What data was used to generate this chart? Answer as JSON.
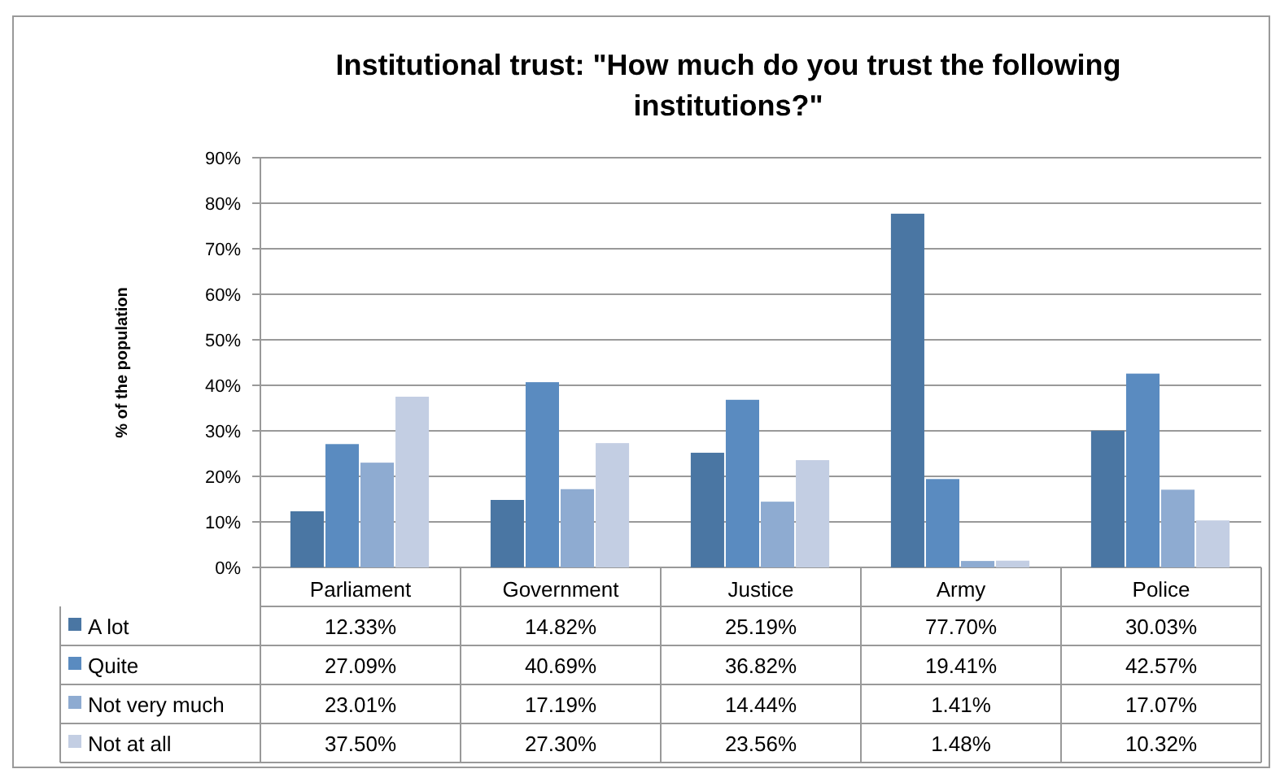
{
  "chart_data": {
    "type": "bar",
    "title": "Institutional trust: \"How much do you trust the following institutions?\"",
    "ylabel": "% of the population",
    "categories": [
      "Parliament",
      "Government",
      "Justice",
      "Army",
      "Police"
    ],
    "series": [
      {
        "name": "A lot",
        "color": "#4a76a3",
        "values": [
          12.33,
          14.82,
          25.19,
          77.7,
          30.03
        ],
        "value_labels": [
          "12.33%",
          "14.82%",
          "25.19%",
          "77.70%",
          "30.03%"
        ]
      },
      {
        "name": "Quite",
        "color": "#5a8bc0",
        "values": [
          27.09,
          40.69,
          36.82,
          19.41,
          42.57
        ],
        "value_labels": [
          "27.09%",
          "40.69%",
          "36.82%",
          "19.41%",
          "42.57%"
        ]
      },
      {
        "name": "Not very much",
        "color": "#8eabd1",
        "values": [
          23.01,
          17.19,
          14.44,
          1.41,
          17.07
        ],
        "value_labels": [
          "23.01%",
          "17.19%",
          "14.44%",
          "1.41%",
          "17.07%"
        ]
      },
      {
        "name": "Not at all",
        "color": "#c3cee3",
        "values": [
          37.5,
          27.3,
          23.56,
          1.48,
          10.32
        ],
        "value_labels": [
          "37.50%",
          "27.30%",
          "23.56%",
          "1.48%",
          "10.32%"
        ]
      }
    ],
    "ylim": [
      0,
      90
    ],
    "yticks": [
      {
        "value": 0,
        "label": "0%"
      },
      {
        "value": 10,
        "label": "10%"
      },
      {
        "value": 20,
        "label": "20%"
      },
      {
        "value": 30,
        "label": "30%"
      },
      {
        "value": 40,
        "label": "40%"
      },
      {
        "value": 50,
        "label": "50%"
      },
      {
        "value": 60,
        "label": "60%"
      },
      {
        "value": 70,
        "label": "70%"
      },
      {
        "value": 80,
        "label": "80%"
      },
      {
        "value": 90,
        "label": "90%"
      }
    ],
    "grid": "y",
    "legend": "bottom left"
  }
}
